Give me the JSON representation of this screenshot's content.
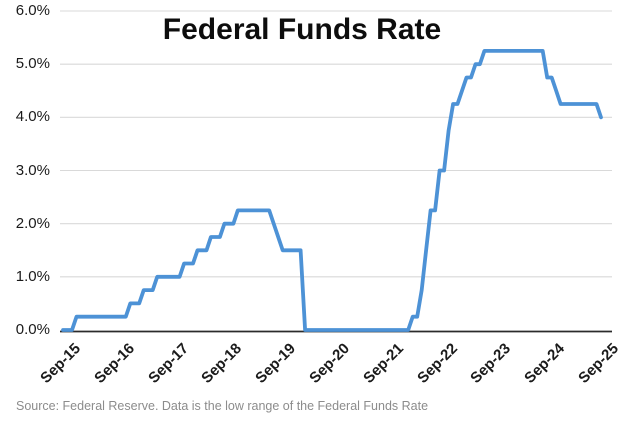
{
  "chart": {
    "title": "Federal Funds Rate",
    "source_note": "Source: Federal Reserve. Data is the low range of the Federal Funds Rate"
  },
  "chart_data": {
    "type": "line",
    "title": "Federal Funds Rate",
    "series_name": "Federal Funds Rate (low range of target)",
    "x_start_month": "Sep-15",
    "x_end_month": "Sep-25",
    "x_tick_labels": [
      "Sep-15",
      "Sep-16",
      "Sep-17",
      "Sep-18",
      "Sep-19",
      "Sep-20",
      "Sep-21",
      "Sep-22",
      "Sep-23",
      "Sep-24",
      "Sep-25"
    ],
    "x_tick_every_months": 12,
    "values_monthly_pct": [
      0.0,
      0.0,
      0.0,
      0.25,
      0.25,
      0.25,
      0.25,
      0.25,
      0.25,
      0.25,
      0.25,
      0.25,
      0.25,
      0.25,
      0.25,
      0.5,
      0.5,
      0.5,
      0.75,
      0.75,
      0.75,
      1.0,
      1.0,
      1.0,
      1.0,
      1.0,
      1.0,
      1.25,
      1.25,
      1.25,
      1.5,
      1.5,
      1.5,
      1.75,
      1.75,
      1.75,
      2.0,
      2.0,
      2.0,
      2.25,
      2.25,
      2.25,
      2.25,
      2.25,
      2.25,
      2.25,
      2.25,
      2.0,
      1.75,
      1.5,
      1.5,
      1.5,
      1.5,
      1.5,
      0.0,
      0.0,
      0.0,
      0.0,
      0.0,
      0.0,
      0.0,
      0.0,
      0.0,
      0.0,
      0.0,
      0.0,
      0.0,
      0.0,
      0.0,
      0.0,
      0.0,
      0.0,
      0.0,
      0.0,
      0.0,
      0.0,
      0.0,
      0.0,
      0.25,
      0.25,
      0.75,
      1.5,
      2.25,
      2.25,
      3.0,
      3.0,
      3.75,
      4.25,
      4.25,
      4.5,
      4.75,
      4.75,
      5.0,
      5.0,
      5.25,
      5.25,
      5.25,
      5.25,
      5.25,
      5.25,
      5.25,
      5.25,
      5.25,
      5.25,
      5.25,
      5.25,
      5.25,
      5.25,
      4.75,
      4.75,
      4.5,
      4.25,
      4.25,
      4.25,
      4.25,
      4.25,
      4.25,
      4.25,
      4.25,
      4.25,
      4.0
    ],
    "ylim": [
      0,
      6
    ],
    "yticks": [
      0,
      1,
      2,
      3,
      4,
      5,
      6
    ],
    "ytick_labels": [
      "0.0%",
      "1.0%",
      "2.0%",
      "3.0%",
      "4.0%",
      "5.0%",
      "6.0%"
    ],
    "grid": "horizontal",
    "legend": "none",
    "line_color": "#4d92d6",
    "grid_color": "#d9d9d9",
    "axis_color": "#2b2b2b",
    "label_color": "#1a1a1a",
    "source_color": "#8c8c8c"
  }
}
